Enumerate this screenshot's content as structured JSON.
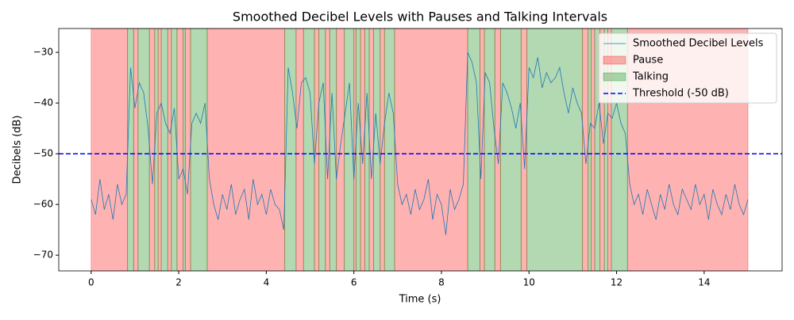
{
  "chart_data": {
    "type": "line",
    "title": "Smoothed Decibel Levels with Pauses and Talking Intervals",
    "x_label": "Time (s)",
    "y_label": "Decibels (dB)",
    "xlim": [
      -0.74,
      15.78
    ],
    "ylim": [
      -73.1,
      -25.3
    ],
    "xticks": [
      0,
      2,
      4,
      6,
      8,
      10,
      12,
      14
    ],
    "yticks": [
      {
        "value": -30,
        "label": "−30"
      },
      {
        "value": -40,
        "label": "−40"
      },
      {
        "value": -50,
        "label": "−50"
      },
      {
        "value": -60,
        "label": "−60"
      },
      {
        "value": -70,
        "label": "−70"
      }
    ],
    "intervals": [
      {
        "name": "Pause",
        "color": "#ff0000",
        "spans": [
          [
            0,
            0.83
          ],
          [
            0.97,
            1.07
          ],
          [
            1.33,
            1.45
          ],
          [
            1.53,
            1.6
          ],
          [
            1.75,
            1.83
          ],
          [
            1.96,
            2.1
          ],
          [
            2.15,
            2.27
          ],
          [
            2.65,
            4.42
          ],
          [
            4.68,
            4.85
          ],
          [
            5.1,
            5.2
          ],
          [
            5.35,
            5.45
          ],
          [
            5.6,
            5.78
          ],
          [
            6.0,
            6.05
          ],
          [
            6.15,
            6.25
          ],
          [
            6.35,
            6.45
          ],
          [
            6.6,
            6.7
          ],
          [
            6.93,
            8.6
          ],
          [
            8.88,
            8.98
          ],
          [
            9.22,
            9.35
          ],
          [
            9.82,
            9.95
          ],
          [
            11.22,
            11.35
          ],
          [
            11.42,
            11.5
          ],
          [
            11.62,
            11.72
          ],
          [
            11.8,
            11.88
          ],
          [
            12.25,
            15.0
          ]
        ]
      },
      {
        "name": "Talking",
        "color": "#008000",
        "spans": [
          [
            0.83,
            0.97
          ],
          [
            1.07,
            1.33
          ],
          [
            1.45,
            1.53
          ],
          [
            1.6,
            1.75
          ],
          [
            1.83,
            1.96
          ],
          [
            2.1,
            2.15
          ],
          [
            2.27,
            2.65
          ],
          [
            4.42,
            4.68
          ],
          [
            4.85,
            5.1
          ],
          [
            5.2,
            5.35
          ],
          [
            5.45,
            5.6
          ],
          [
            5.78,
            6.0
          ],
          [
            6.05,
            6.15
          ],
          [
            6.25,
            6.35
          ],
          [
            6.45,
            6.6
          ],
          [
            6.7,
            6.93
          ],
          [
            8.6,
            8.88
          ],
          [
            8.98,
            9.22
          ],
          [
            9.35,
            9.82
          ],
          [
            9.95,
            11.22
          ],
          [
            11.35,
            11.42
          ],
          [
            11.5,
            11.62
          ],
          [
            11.72,
            11.8
          ],
          [
            11.88,
            12.25
          ]
        ]
      }
    ],
    "threshold": {
      "name": "Threshold (-50 dB)",
      "value": -50,
      "color": "#0000ff"
    },
    "x": [
      0,
      0.1,
      0.2,
      0.3,
      0.4,
      0.5,
      0.6,
      0.7,
      0.8,
      0.9,
      1,
      1.1,
      1.2,
      1.3,
      1.4,
      1.5,
      1.6,
      1.7,
      1.8,
      1.9,
      2,
      2.1,
      2.2,
      2.3,
      2.4,
      2.5,
      2.6,
      2.7,
      2.8,
      2.9,
      3,
      3.1,
      3.2,
      3.3,
      3.4,
      3.5,
      3.6,
      3.7,
      3.8,
      3.9,
      4,
      4.1,
      4.2,
      4.3,
      4.4,
      4.5,
      4.6,
      4.7,
      4.8,
      4.9,
      5,
      5.1,
      5.2,
      5.3,
      5.4,
      5.5,
      5.6,
      5.7,
      5.8,
      5.9,
      6,
      6.1,
      6.2,
      6.3,
      6.4,
      6.5,
      6.6,
      6.7,
      6.8,
      6.9,
      7,
      7.1,
      7.2,
      7.3,
      7.4,
      7.5,
      7.6,
      7.7,
      7.8,
      7.9,
      8,
      8.1,
      8.2,
      8.3,
      8.4,
      8.5,
      8.6,
      8.7,
      8.8,
      8.9,
      9,
      9.1,
      9.2,
      9.3,
      9.4,
      9.5,
      9.6,
      9.7,
      9.8,
      9.9,
      10,
      10.1,
      10.2,
      10.3,
      10.4,
      10.5,
      10.6,
      10.7,
      10.8,
      10.9,
      11,
      11.1,
      11.2,
      11.3,
      11.4,
      11.5,
      11.6,
      11.7,
      11.8,
      11.9,
      12,
      12.1,
      12.2,
      12.3,
      12.4,
      12.5,
      12.6,
      12.7,
      12.8,
      12.9,
      13,
      13.1,
      13.2,
      13.3,
      13.4,
      13.5,
      13.6,
      13.7,
      13.8,
      13.9,
      14,
      14.1,
      14.2,
      14.3,
      14.4,
      14.5,
      14.6,
      14.7,
      14.8,
      14.9,
      15
    ],
    "series": [
      {
        "name": "Smoothed Decibel Levels",
        "color": "#1f77b4",
        "values": [
          -59,
          -62,
          -55,
          -61,
          -58,
          -63,
          -56,
          -60,
          -58,
          -33,
          -41,
          -36,
          -38,
          -45,
          -56,
          -42,
          -40,
          -44,
          -46,
          -41,
          -55,
          -53,
          -58,
          -44,
          -42,
          -44,
          -40,
          -55,
          -60,
          -63,
          -58,
          -61,
          -56,
          -62,
          -59,
          -57,
          -63,
          -55,
          -60,
          -58,
          -62,
          -57,
          -60,
          -61,
          -65,
          -33,
          -38,
          -45,
          -36,
          -35,
          -38,
          -52,
          -40,
          -36,
          -55,
          -38,
          -55,
          -48,
          -42,
          -36,
          -55,
          -40,
          -52,
          -38,
          -55,
          -42,
          -52,
          -44,
          -38,
          -42,
          -56,
          -60,
          -58,
          -62,
          -57,
          -61,
          -59,
          -55,
          -63,
          -58,
          -60,
          -66,
          -57,
          -61,
          -59,
          -56,
          -30,
          -32,
          -36,
          -55,
          -34,
          -36,
          -45,
          -52,
          -36,
          -38,
          -41,
          -45,
          -40,
          -53,
          -33,
          -35,
          -31,
          -37,
          -34,
          -36,
          -35,
          -33,
          -38,
          -42,
          -37,
          -40,
          -42,
          -52,
          -44,
          -45,
          -40,
          -48,
          -42,
          -43,
          -40,
          -44,
          -46,
          -56,
          -60,
          -58,
          -62,
          -57,
          -60,
          -63,
          -58,
          -61,
          -56,
          -60,
          -62,
          -57,
          -59,
          -61,
          -56,
          -60,
          -58,
          -63,
          -57,
          -60,
          -62,
          -58,
          -61,
          -56,
          -60,
          -62,
          -59
        ]
      }
    ]
  }
}
